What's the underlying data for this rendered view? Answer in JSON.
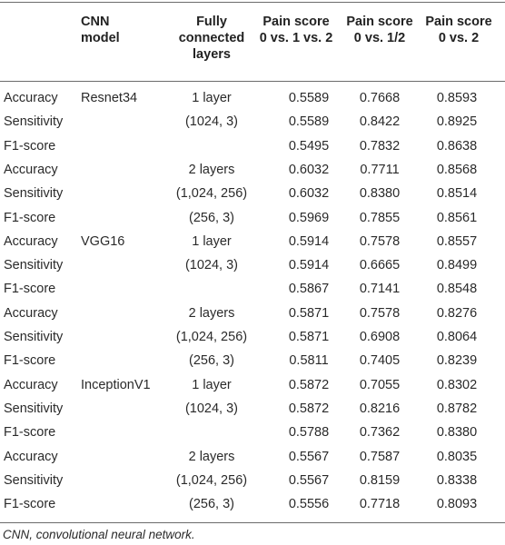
{
  "headers": {
    "model": [
      "CNN",
      "model"
    ],
    "fc": [
      "Fully",
      "connected",
      "layers"
    ],
    "v1": [
      "Pain score",
      "0 vs. 1 vs. 2"
    ],
    "v2": [
      "Pain score",
      "0 vs. 1/2"
    ],
    "v3": [
      "Pain score",
      "0 vs. 2"
    ]
  },
  "rows": [
    {
      "metric": "Accuracy",
      "model": "Resnet34",
      "fc": "1 layer",
      "v1": "0.5589",
      "v2": "0.7668",
      "v3": "0.8593"
    },
    {
      "metric": "Sensitivity",
      "model": "",
      "fc": "(1024, 3)",
      "v1": "0.5589",
      "v2": "0.8422",
      "v3": "0.8925"
    },
    {
      "metric": "F1-score",
      "model": "",
      "fc": "",
      "v1": "0.5495",
      "v2": "0.7832",
      "v3": "0.8638"
    },
    {
      "metric": "Accuracy",
      "model": "",
      "fc": "2 layers",
      "v1": "0.6032",
      "v2": "0.7711",
      "v3": "0.8568"
    },
    {
      "metric": "Sensitivity",
      "model": "",
      "fc": "(1,024, 256)",
      "v1": "0.6032",
      "v2": "0.8380",
      "v3": "0.8514"
    },
    {
      "metric": "F1-score",
      "model": "",
      "fc": "(256, 3)",
      "v1": "0.5969",
      "v2": "0.7855",
      "v3": "0.8561"
    },
    {
      "metric": "Accuracy",
      "model": "VGG16",
      "fc": "1 layer",
      "v1": "0.5914",
      "v2": "0.7578",
      "v3": "0.8557"
    },
    {
      "metric": "Sensitivity",
      "model": "",
      "fc": "(1024, 3)",
      "v1": "0.5914",
      "v2": "0.6665",
      "v3": "0.8499"
    },
    {
      "metric": "F1-score",
      "model": "",
      "fc": "",
      "v1": "0.5867",
      "v2": "0.7141",
      "v3": "0.8548"
    },
    {
      "metric": "Accuracy",
      "model": "",
      "fc": "2 layers",
      "v1": "0.5871",
      "v2": "0.7578",
      "v3": "0.8276"
    },
    {
      "metric": "Sensitivity",
      "model": "",
      "fc": "(1,024, 256)",
      "v1": "0.5871",
      "v2": "0.6908",
      "v3": "0.8064"
    },
    {
      "metric": "F1-score",
      "model": "",
      "fc": "(256, 3)",
      "v1": "0.5811",
      "v2": "0.7405",
      "v3": "0.8239"
    },
    {
      "metric": "Accuracy",
      "model": "InceptionV1",
      "fc": "1 layer",
      "v1": "0.5872",
      "v2": "0.7055",
      "v3": "0.8302"
    },
    {
      "metric": "Sensitivity",
      "model": "",
      "fc": "(1024, 3)",
      "v1": "0.5872",
      "v2": "0.8216",
      "v3": "0.8782"
    },
    {
      "metric": "F1-score",
      "model": "",
      "fc": "",
      "v1": "0.5788",
      "v2": "0.7362",
      "v3": "0.8380"
    },
    {
      "metric": "Accuracy",
      "model": "",
      "fc": "2 layers",
      "v1": "0.5567",
      "v2": "0.7587",
      "v3": "0.8035"
    },
    {
      "metric": "Sensitivity",
      "model": "",
      "fc": "(1,024, 256)",
      "v1": "0.5567",
      "v2": "0.8159",
      "v3": "0.8338"
    },
    {
      "metric": "F1-score",
      "model": "",
      "fc": "(256, 3)",
      "v1": "0.5556",
      "v2": "0.7718",
      "v3": "0.8093"
    }
  ],
  "footnote": "CNN, convolutional neural network."
}
